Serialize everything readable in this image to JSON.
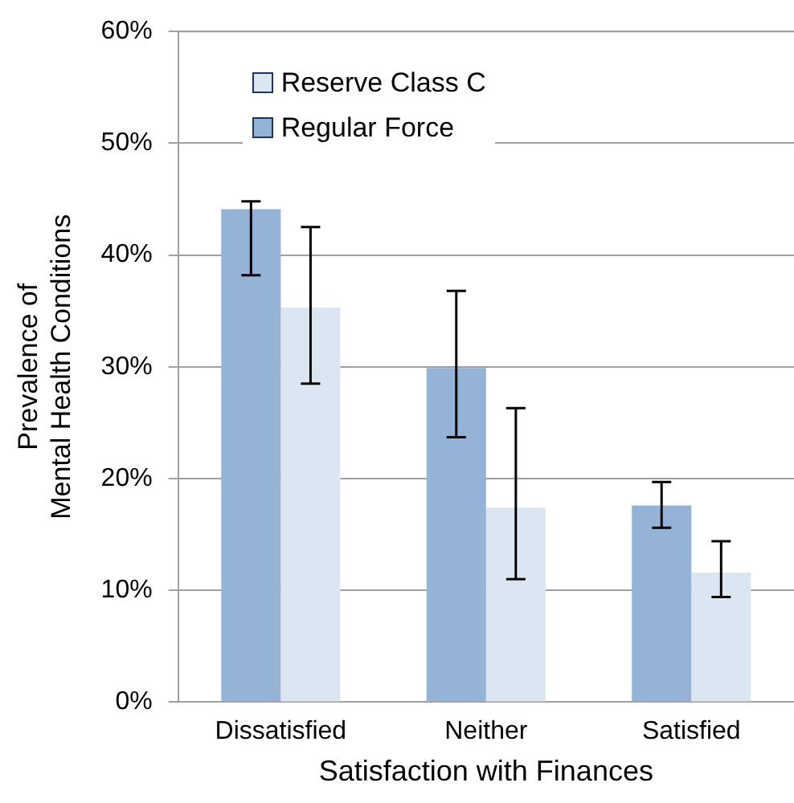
{
  "chart_data": {
    "type": "bar",
    "xlabel": "Satisfaction with Finances",
    "ylabel": "Prevalence of\nMental Health Conditions",
    "categories": [
      "Dissatisfied",
      "Neither",
      "Satisfied"
    ],
    "series": [
      {
        "name": "Regular Force",
        "color": "#95b3d7",
        "values": [
          44.1,
          29.9,
          17.6
        ],
        "errors": [
          [
            38.2,
            44.8
          ],
          [
            23.7,
            36.8
          ],
          [
            15.6,
            19.7
          ]
        ]
      },
      {
        "name": "Reserve Class C",
        "color": "#dce6f2",
        "values": [
          35.3,
          17.4,
          11.6
        ],
        "errors": [
          [
            28.5,
            42.5
          ],
          [
            11.0,
            26.3
          ],
          [
            9.4,
            14.4
          ]
        ]
      }
    ],
    "ylim": [
      0,
      60
    ],
    "yticks": [
      {
        "value": 0,
        "label": "0%"
      },
      {
        "value": 10,
        "label": "10%"
      },
      {
        "value": 20,
        "label": "20%"
      },
      {
        "value": 30,
        "label": "30%"
      },
      {
        "value": 40,
        "label": "40%"
      },
      {
        "value": 50,
        "label": "50%"
      },
      {
        "value": 60,
        "label": "60%"
      }
    ],
    "grid": "y",
    "legend": "top left"
  }
}
